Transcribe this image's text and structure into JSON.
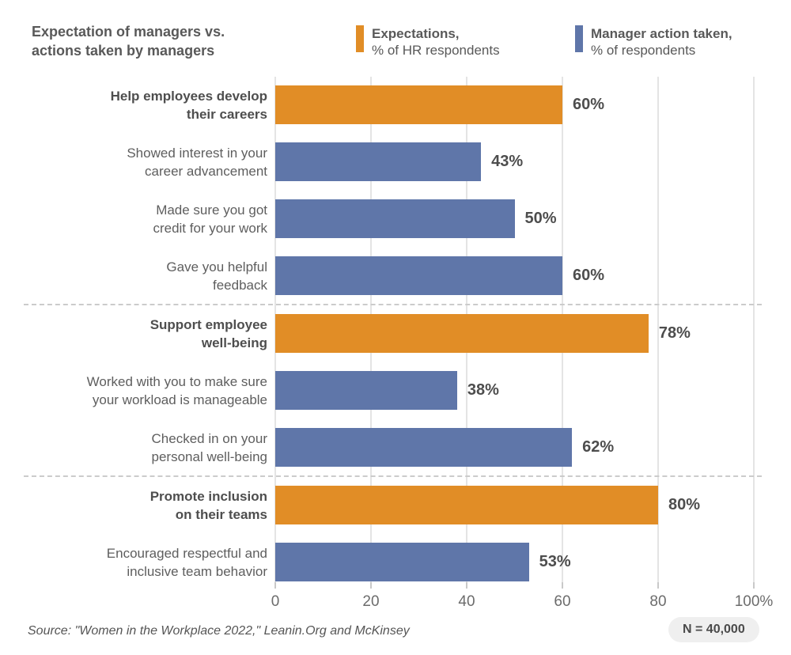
{
  "header": {
    "title": "Expectation of managers vs.\nactions taken by managers"
  },
  "footer": {
    "source": "Source: \"Women in the Workplace 2022,\" Leanin.Org and McKinsey",
    "sample_badge": "N = 40,000"
  },
  "colors": {
    "expectation": "#E18D26",
    "action": "#5F76A9",
    "gridline": "#E4E4E4",
    "divider": "#CBCBCB",
    "badge_background": "#EFEFEF",
    "title_text": "#595959",
    "value_text": "#4D4D4D"
  },
  "chart_data": {
    "type": "bar",
    "orientation": "horizontal",
    "title": "Expectation of managers vs.\nactions taken by managers",
    "xlabel": "",
    "ylabel": "",
    "xlim": [
      0,
      100
    ],
    "grid": true,
    "legend_position": "top",
    "legend": [
      {
        "name": "Expectations, % of HR respondents",
        "line1": "Expectations,",
        "line2": "% of HR respondents",
        "series": "expectation",
        "color": "#E18D26"
      },
      {
        "name": "Manager action taken, % of respondents",
        "line1": "Manager action taken,",
        "line2": "% of respondents",
        "series": "action",
        "color": "#5F76A9"
      }
    ],
    "x_ticks": [
      {
        "value": 0,
        "label": "0"
      },
      {
        "value": 20,
        "label": "20"
      },
      {
        "value": 40,
        "label": "40"
      },
      {
        "value": 60,
        "label": "60"
      },
      {
        "value": 80,
        "label": "80"
      },
      {
        "value": 100,
        "label": "100%"
      }
    ],
    "rows": [
      {
        "label": "Help employees develop\ntheir careers",
        "value": 60,
        "display": "60%",
        "series": "expectation",
        "group_start": true
      },
      {
        "label": "Showed interest in your\ncareer advancement",
        "value": 43,
        "display": "43%",
        "series": "action",
        "group_start": false
      },
      {
        "label": "Made sure you got\ncredit for your work",
        "value": 50,
        "display": "50%",
        "series": "action",
        "group_start": false
      },
      {
        "label": "Gave you helpful\nfeedback",
        "value": 60,
        "display": "60%",
        "series": "action",
        "group_start": false
      },
      {
        "label": "Support employee\nwell-being",
        "value": 78,
        "display": "78%",
        "series": "expectation",
        "group_start": true
      },
      {
        "label": "Worked with you to make sure\nyour workload is manageable",
        "value": 38,
        "display": "38%",
        "series": "action",
        "group_start": false
      },
      {
        "label": "Checked in on your\npersonal well-being",
        "value": 62,
        "display": "62%",
        "series": "action",
        "group_start": false
      },
      {
        "label": "Promote inclusion\non their teams",
        "value": 80,
        "display": "80%",
        "series": "expectation",
        "group_start": true
      },
      {
        "label": "Encouraged respectful and\ninclusive team behavior",
        "value": 53,
        "display": "53%",
        "series": "action",
        "group_start": false
      }
    ]
  }
}
